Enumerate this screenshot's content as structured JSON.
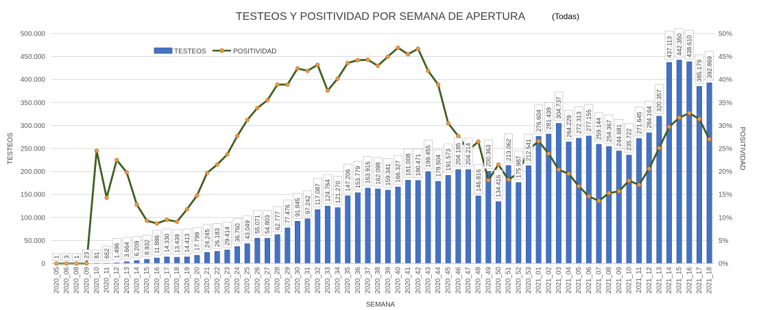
{
  "chart_data": {
    "type": "bar",
    "title": "TESTEOS Y POSITIVIDAD POR SEMANA DE APERTURA",
    "subtitle": "(Todas)",
    "xlabel": "SEMANA",
    "ylabel": "TESTEOS",
    "y2label": "POSITIVIDAD",
    "ylim": [
      0,
      500000
    ],
    "y2lim": [
      0,
      50
    ],
    "yticks": [
      "0",
      "50.000",
      "100.000",
      "150.000",
      "200.000",
      "250.000",
      "300.000",
      "350.000",
      "400.000",
      "450.000",
      "500.000"
    ],
    "y2ticks": [
      "0%",
      "5%",
      "10%",
      "15%",
      "20%",
      "25%",
      "30%",
      "35%",
      "40%",
      "45%",
      "50%"
    ],
    "grid": true,
    "legend": "top-left",
    "colors": {
      "bar": "#4472C4",
      "bar_edge": "#2F5597",
      "line": "#3F5E1F",
      "marker": "#ED9A42",
      "marker_edge": "#B8722F"
    },
    "categories": [
      "2020_05",
      "2020_06",
      "2020_08",
      "2020_09",
      "2020_10",
      "2020_11",
      "2020_12",
      "2020_13",
      "2020_14",
      "2020_15",
      "2020_16",
      "2020_17",
      "2020_18",
      "2020_19",
      "2020_20",
      "2020_21",
      "2020_22",
      "2020_23",
      "2020_24",
      "2020_25",
      "2020_26",
      "2020_27",
      "2020_28",
      "2020_29",
      "2020_30",
      "2020_31",
      "2020_32",
      "2020_33",
      "2020_34",
      "2020_35",
      "2020_36",
      "2020_37",
      "2020_38",
      "2020_39",
      "2020_40",
      "2020_41",
      "2020_42",
      "2020_43",
      "2020_44",
      "2020_45",
      "2020_46",
      "2020_47",
      "2020_48",
      "2020_49",
      "2020_50",
      "2020_51",
      "2020_52",
      "2020_53",
      "2021_01",
      "2021_02",
      "2021_03",
      "2021_04",
      "2021_05",
      "2021_06",
      "2021_07",
      "2021_08",
      "2021_09",
      "2021_10",
      "2021_11",
      "2021_12",
      "2021_13",
      "2021_14",
      "2021_15",
      "2021_16",
      "2021_17",
      "2021_18"
    ],
    "series": [
      {
        "name": "TESTEOS",
        "type": "bar",
        "axis": "left",
        "values": [
          1,
          3,
          1,
          23,
          81,
          652,
          1496,
          3664,
          6209,
          8932,
          11886,
          14330,
          13439,
          14413,
          17799,
          24245,
          26183,
          29414,
          36760,
          43049,
          55071,
          54803,
          62777,
          77476,
          91845,
          97242,
          117087,
          124764,
          121270,
          147206,
          153779,
          163916,
          162098,
          159341,
          166327,
          181008,
          180471,
          199455,
          178504,
          191573,
          204185,
          204214,
          146816,
          200363,
          134416,
          213062,
          175987,
          212541,
          276604,
          281439,
          304737,
          264229,
          272313,
          277155,
          259144,
          254367,
          244681,
          235722,
          271645,
          284164,
          320357,
          437113,
          442350,
          438610,
          385179,
          392869
        ],
        "labels": [
          "1",
          "3",
          "1",
          "23",
          "81",
          "652",
          "1.496",
          "3.664",
          "6.209",
          "8.932",
          "11.886",
          "14.330",
          "13.439",
          "14.413",
          "17.799",
          "24.245",
          "26.183",
          "29.414",
          "36.760",
          "43.049",
          "55.071",
          "54.803",
          "62.777",
          "77.476",
          "91.845",
          "97.242",
          "117.087",
          "124.764",
          "121.270",
          "147.206",
          "153.779",
          "163.916",
          "162.098",
          "159.341",
          "166.327",
          "181.008",
          "180.471",
          "199.455",
          "178.504",
          "191.573",
          "204.185",
          "204.214",
          "146.816",
          "200.363",
          "134.416",
          "213.062",
          "175.987",
          "212.541",
          "276.604",
          "281.439",
          "304.737",
          "264.229",
          "272.313",
          "277.155",
          "259.144",
          "254.367",
          "244.681",
          "235.722",
          "271.645",
          "284.164",
          "320.357",
          "437.113",
          "442.350",
          "438.610",
          "385.179",
          "392.869"
        ]
      },
      {
        "name": "POSITIVIDAD",
        "type": "line",
        "axis": "right",
        "values": [
          0,
          0,
          0,
          0,
          24.5,
          14.3,
          22.5,
          19.8,
          12.8,
          9.3,
          8.7,
          9.5,
          9.1,
          11.8,
          14.8,
          19.7,
          21.5,
          23.7,
          27.7,
          31.2,
          33.8,
          35.5,
          38.9,
          38.9,
          42.4,
          41.9,
          43.2,
          37.6,
          40.2,
          43.6,
          44.2,
          44.3,
          43.0,
          45.0,
          46.9,
          45.5,
          46.7,
          41.9,
          38.9,
          30.5,
          27.7,
          24.6,
          26.5,
          18.1,
          21.5,
          18.2,
          19.7,
          24.7,
          26.6,
          23.9,
          20.4,
          19.5,
          16.8,
          14.6,
          13.6,
          15.3,
          15.7,
          18.0,
          17.1,
          20.6,
          25.1,
          29.7,
          31.7,
          32.7,
          31.4,
          27.0
        ]
      }
    ]
  }
}
